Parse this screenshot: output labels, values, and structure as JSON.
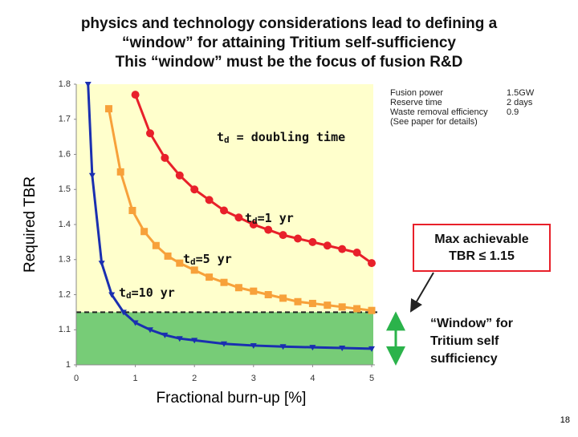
{
  "chart_data": {
    "type": "line",
    "title": [
      "physics and technology considerations lead to defining a",
      "“window” for attaining Tritium self-sufficiency",
      "This “window” must be the focus of fusion R&D"
    ],
    "x_label": "Fractional burn-up [%]",
    "y_label": "Required TBR",
    "xlim": [
      0,
      5
    ],
    "xticks": [
      0,
      1,
      2,
      3,
      4,
      5
    ],
    "ylim": [
      1,
      1.8
    ],
    "yticks": [
      1,
      1.1,
      1.2,
      1.3,
      1.4,
      1.5,
      1.6,
      1.7,
      1.8
    ],
    "window_limit": 1.15,
    "series": [
      {
        "name": [
          "t",
          "d",
          "=1 yr"
        ],
        "color": "#e8202a",
        "marker": "circle",
        "x": [
          1.0,
          1.25,
          1.5,
          1.75,
          2.0,
          2.25,
          2.5,
          2.75,
          3.0,
          3.25,
          3.5,
          3.75,
          4.0,
          4.25,
          4.5,
          4.75,
          5.0
        ],
        "values": [
          1.77,
          1.66,
          1.59,
          1.54,
          1.5,
          1.47,
          1.44,
          1.42,
          1.4,
          1.385,
          1.37,
          1.36,
          1.35,
          1.34,
          1.33,
          1.32,
          1.29
        ]
      },
      {
        "name": [
          "t",
          "d",
          "=5 yr"
        ],
        "color": "#f7a13a",
        "marker": "square",
        "x": [
          0.55,
          0.75,
          0.95,
          1.15,
          1.35,
          1.55,
          1.75,
          2.0,
          2.25,
          2.5,
          2.75,
          3.0,
          3.25,
          3.5,
          3.75,
          4.0,
          4.25,
          4.5,
          4.75,
          5.0
        ],
        "values": [
          1.73,
          1.55,
          1.44,
          1.38,
          1.34,
          1.31,
          1.29,
          1.27,
          1.25,
          1.235,
          1.22,
          1.21,
          1.2,
          1.19,
          1.18,
          1.175,
          1.17,
          1.165,
          1.16,
          1.155
        ]
      },
      {
        "name": [
          "t",
          "d",
          "=10 yr"
        ],
        "color": "#1a2fb0",
        "marker": "triangle",
        "x": [
          0.2,
          0.27,
          0.43,
          0.6,
          0.8,
          1.0,
          1.25,
          1.5,
          1.75,
          2.0,
          2.5,
          3.0,
          3.5,
          4.0,
          4.5,
          5.0
        ],
        "values": [
          1.8,
          1.54,
          1.29,
          1.2,
          1.15,
          1.12,
          1.1,
          1.085,
          1.075,
          1.07,
          1.06,
          1.055,
          1.052,
          1.05,
          1.048,
          1.046
        ]
      }
    ],
    "doubling_note": [
      "t",
      "d",
      " = doubling time"
    ],
    "assumptions": [
      [
        "Fusion power",
        "1.5GW"
      ],
      [
        "Reserve time",
        "2 days"
      ],
      [
        "Waste removal efficiency",
        "0.9"
      ],
      [
        "(See paper for details)",
        ""
      ]
    ],
    "max_tbr_box": [
      "Max achievable",
      "TBR ≤ 1.15"
    ],
    "window_note": [
      "“Window” for",
      "Tritium self",
      "sufficiency"
    ],
    "page_number": "18"
  }
}
